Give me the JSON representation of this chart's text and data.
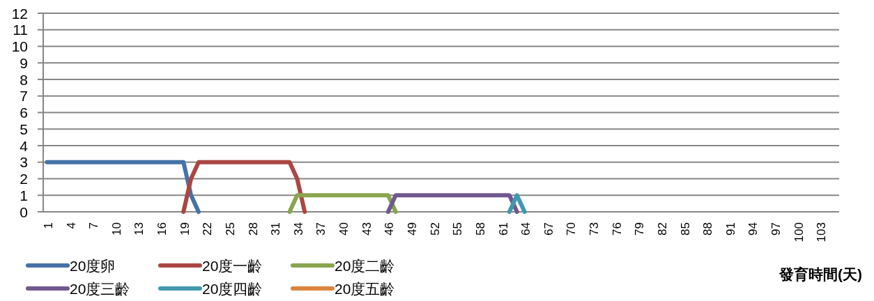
{
  "chart_data": {
    "type": "line",
    "xlabel": "發育時間(天)",
    "categories": [
      "1",
      null,
      null,
      "4",
      null,
      null,
      "7",
      null,
      null,
      "10",
      null,
      null,
      "13",
      null,
      null,
      "16",
      null,
      null,
      "19",
      null,
      null,
      "22",
      null,
      null,
      "25",
      null,
      null,
      "28",
      null,
      null,
      "31",
      null,
      null,
      "34",
      null,
      null,
      "37",
      null,
      null,
      "40",
      null,
      null,
      "43",
      null,
      null,
      "46",
      null,
      null,
      "49",
      null,
      null,
      "52",
      null,
      null,
      "55",
      null,
      null,
      "58",
      null,
      null,
      "61",
      null,
      null,
      "64",
      null,
      null,
      "67",
      null,
      null,
      "70",
      null,
      null,
      "73",
      null,
      null,
      "76",
      null,
      null,
      "79",
      null,
      null,
      "82",
      null,
      null,
      "85",
      null,
      null,
      "88",
      null,
      null,
      "91",
      null,
      null,
      "94",
      null,
      null,
      "97",
      null,
      null,
      "100",
      null,
      null,
      "103",
      null,
      null
    ],
    "series": [
      {
        "name": "20度卵",
        "color": "#4572a7",
        "values": [
          3,
          3,
          3,
          3,
          3,
          3,
          3,
          3,
          3,
          3,
          3,
          3,
          3,
          3,
          3,
          3,
          3,
          3,
          3,
          1,
          0,
          null,
          null,
          null,
          null,
          null,
          null,
          null,
          null,
          null,
          null,
          null,
          null,
          null,
          null,
          null,
          null,
          null,
          null,
          null,
          null,
          null,
          null,
          null,
          null,
          null,
          null,
          null,
          null,
          null,
          null,
          null,
          null,
          null,
          null,
          null,
          null,
          null,
          null,
          null,
          null,
          null,
          null,
          null,
          null,
          null,
          null,
          null,
          null,
          null,
          null,
          null,
          null,
          null,
          null,
          null,
          null,
          null,
          null,
          null,
          null,
          null,
          null,
          null,
          null,
          null,
          null,
          null,
          null,
          null,
          null,
          null,
          null,
          null,
          null,
          null,
          null,
          null,
          null,
          null,
          null,
          null,
          null,
          null,
          null
        ]
      },
      {
        "name": "20度一齡",
        "color": "#aa4643",
        "values": [
          null,
          null,
          null,
          null,
          null,
          null,
          null,
          null,
          null,
          null,
          null,
          null,
          null,
          null,
          null,
          null,
          null,
          null,
          0,
          2,
          3,
          3,
          3,
          3,
          3,
          3,
          3,
          3,
          3,
          3,
          3,
          3,
          3,
          2,
          0,
          null,
          null,
          null,
          null,
          null,
          null,
          null,
          null,
          null,
          null,
          null,
          null,
          null,
          null,
          null,
          null,
          null,
          null,
          null,
          null,
          null,
          null,
          null,
          null,
          null,
          null,
          null,
          null,
          null,
          null,
          null,
          null,
          null,
          null,
          null,
          null,
          null,
          null,
          null,
          null,
          null,
          null,
          null,
          null,
          null,
          null,
          null,
          null,
          null,
          null,
          null,
          null,
          null,
          null,
          null,
          null,
          null,
          null,
          null,
          null,
          null,
          null,
          null,
          null,
          null,
          null,
          null,
          null,
          null,
          null
        ]
      },
      {
        "name": "20度二齡",
        "color": "#89a54e",
        "values": [
          null,
          null,
          null,
          null,
          null,
          null,
          null,
          null,
          null,
          null,
          null,
          null,
          null,
          null,
          null,
          null,
          null,
          null,
          null,
          null,
          null,
          null,
          null,
          null,
          null,
          null,
          null,
          null,
          null,
          null,
          null,
          null,
          0,
          1,
          1,
          1,
          1,
          1,
          1,
          1,
          1,
          1,
          1,
          1,
          1,
          1,
          0,
          null,
          null,
          null,
          null,
          null,
          null,
          null,
          null,
          null,
          null,
          null,
          null,
          null,
          null,
          null,
          null,
          null,
          null,
          null,
          null,
          null,
          null,
          null,
          null,
          null,
          null,
          null,
          null,
          null,
          null,
          null,
          null,
          null,
          null,
          null,
          null,
          null,
          null,
          null,
          null,
          null,
          null,
          null,
          null,
          null,
          null,
          null,
          null,
          null,
          null,
          null,
          null,
          null,
          null,
          null,
          null,
          null,
          null
        ]
      },
      {
        "name": "20度三齡",
        "color": "#71588f",
        "values": [
          null,
          null,
          null,
          null,
          null,
          null,
          null,
          null,
          null,
          null,
          null,
          null,
          null,
          null,
          null,
          null,
          null,
          null,
          null,
          null,
          null,
          null,
          null,
          null,
          null,
          null,
          null,
          null,
          null,
          null,
          null,
          null,
          null,
          null,
          null,
          null,
          null,
          null,
          null,
          null,
          null,
          null,
          null,
          null,
          null,
          0,
          1,
          1,
          1,
          1,
          1,
          1,
          1,
          1,
          1,
          1,
          1,
          1,
          1,
          1,
          1,
          1,
          0,
          null,
          null,
          null,
          null,
          null,
          null,
          null,
          null,
          null,
          null,
          null,
          null,
          null,
          null,
          null,
          null,
          null,
          null,
          null,
          null,
          null,
          null,
          null,
          null,
          null,
          null,
          null,
          null,
          null,
          null,
          null,
          null,
          null,
          null,
          null,
          null,
          null,
          null,
          null,
          null,
          null,
          null
        ]
      },
      {
        "name": "20度四齡",
        "color": "#4198af",
        "values": [
          null,
          null,
          null,
          null,
          null,
          null,
          null,
          null,
          null,
          null,
          null,
          null,
          null,
          null,
          null,
          null,
          null,
          null,
          null,
          null,
          null,
          null,
          null,
          null,
          null,
          null,
          null,
          null,
          null,
          null,
          null,
          null,
          null,
          null,
          null,
          null,
          null,
          null,
          null,
          null,
          null,
          null,
          null,
          null,
          null,
          null,
          null,
          null,
          null,
          null,
          null,
          null,
          null,
          null,
          null,
          null,
          null,
          null,
          null,
          null,
          null,
          0,
          1,
          0,
          null,
          null,
          null,
          null,
          null,
          null,
          null,
          null,
          null,
          null,
          null,
          null,
          null,
          null,
          null,
          null,
          null,
          null,
          null,
          null,
          null,
          null,
          null,
          null,
          null,
          null,
          null,
          null,
          null,
          null,
          null,
          null,
          null,
          null,
          null,
          null,
          null,
          null,
          null,
          null,
          null
        ]
      },
      {
        "name": "20度五齡",
        "color": "#db843d",
        "values": [
          null,
          null,
          null,
          null,
          null,
          null,
          null,
          null,
          null,
          null,
          null,
          null,
          null,
          null,
          null,
          null,
          null,
          null,
          null,
          null,
          null,
          null,
          null,
          null,
          null,
          null,
          null,
          null,
          null,
          null,
          null,
          null,
          null,
          null,
          null,
          null,
          null,
          null,
          null,
          null,
          null,
          null,
          null,
          null,
          null,
          null,
          null,
          null,
          null,
          null,
          null,
          null,
          null,
          null,
          null,
          null,
          null,
          null,
          null,
          null,
          null,
          null,
          null,
          null,
          null,
          null,
          null,
          null,
          null,
          null,
          null,
          null,
          null,
          null,
          null,
          null,
          null,
          null,
          null,
          null,
          null,
          null,
          null,
          null,
          null,
          null,
          null,
          null,
          null,
          null,
          null,
          null,
          null,
          null,
          null,
          null,
          null,
          null,
          null,
          null,
          null,
          null,
          null,
          null,
          null
        ]
      }
    ],
    "ylim": [
      0,
      12
    ],
    "yticks": [
      0,
      1,
      2,
      3,
      4,
      5,
      6,
      7,
      8,
      9,
      10,
      11,
      12
    ],
    "grid": "y",
    "legend": "bottom",
    "line_style": "solid"
  }
}
